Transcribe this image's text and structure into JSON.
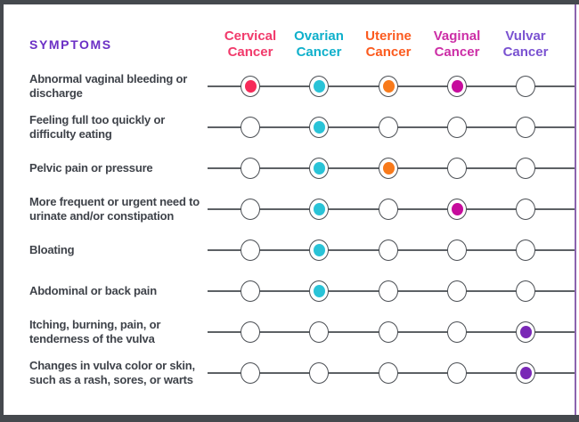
{
  "title": "SYMPTOMS",
  "colors": {
    "frame_dark": "#45494e",
    "frame_right_purple": "#8c64ae",
    "title_purple": "#6b2fc5",
    "row_label_gray": "#3f434a",
    "line_gray": "#5d6165",
    "circle_outline": "#4b4f54"
  },
  "columns": [
    {
      "label": "Cervical Cancer",
      "header_color": "#f13a6b",
      "dot_color": "#f62a59"
    },
    {
      "label": "Ovarian Cancer",
      "header_color": "#0fb0cb",
      "dot_color": "#29c3d7"
    },
    {
      "label": "Uterine Cancer",
      "header_color": "#fb5a1e",
      "dot_color": "#f87a1b"
    },
    {
      "label": "Vaginal Cancer",
      "header_color": "#cc2ea6",
      "dot_color": "#c60c9c"
    },
    {
      "label": "Vulvar Cancer",
      "header_color": "#7a52d1",
      "dot_color": "#7927b6"
    }
  ],
  "rows": [
    {
      "label": "Abnormal vaginal bleeding or discharge",
      "marks": [
        true,
        true,
        true,
        true,
        false
      ]
    },
    {
      "label": "Feeling full too quickly or difficulty eating",
      "marks": [
        false,
        true,
        false,
        false,
        false
      ]
    },
    {
      "label": "Pelvic pain or pressure",
      "marks": [
        false,
        true,
        true,
        false,
        false
      ]
    },
    {
      "label": "More frequent or urgent need to urinate and/or constipation",
      "marks": [
        false,
        true,
        false,
        true,
        false
      ]
    },
    {
      "label": "Bloating",
      "marks": [
        false,
        true,
        false,
        false,
        false
      ]
    },
    {
      "label": "Abdominal or back pain",
      "marks": [
        false,
        true,
        false,
        false,
        false
      ]
    },
    {
      "label": "Itching, burning, pain, or tenderness of the vulva",
      "marks": [
        false,
        false,
        false,
        false,
        true
      ]
    },
    {
      "label": "Changes in vulva color or skin, such as a rash, sores, or warts",
      "marks": [
        false,
        false,
        false,
        false,
        true
      ]
    }
  ],
  "chart_data": {
    "type": "table",
    "title": "SYMPTOMS",
    "columns": [
      "Cervical Cancer",
      "Ovarian Cancer",
      "Uterine Cancer",
      "Vaginal Cancer",
      "Vulvar Cancer"
    ],
    "rows": [
      "Abnormal vaginal bleeding or discharge",
      "Feeling full too quickly or difficulty eating",
      "Pelvic pain or pressure",
      "More frequent or urgent need to urinate and/or constipation",
      "Bloating",
      "Abdominal or back pain",
      "Itching, burning, pain, or tenderness of the vulva",
      "Changes in vulva color or skin, such as a rash, sores, or warts"
    ],
    "values": [
      [
        1,
        1,
        1,
        1,
        0
      ],
      [
        0,
        1,
        0,
        0,
        0
      ],
      [
        0,
        1,
        1,
        0,
        0
      ],
      [
        0,
        1,
        0,
        1,
        0
      ],
      [
        0,
        1,
        0,
        0,
        0
      ],
      [
        0,
        1,
        0,
        0,
        0
      ],
      [
        0,
        0,
        0,
        0,
        1
      ],
      [
        0,
        0,
        0,
        0,
        1
      ]
    ],
    "legend_position": "none",
    "grid": "off"
  }
}
